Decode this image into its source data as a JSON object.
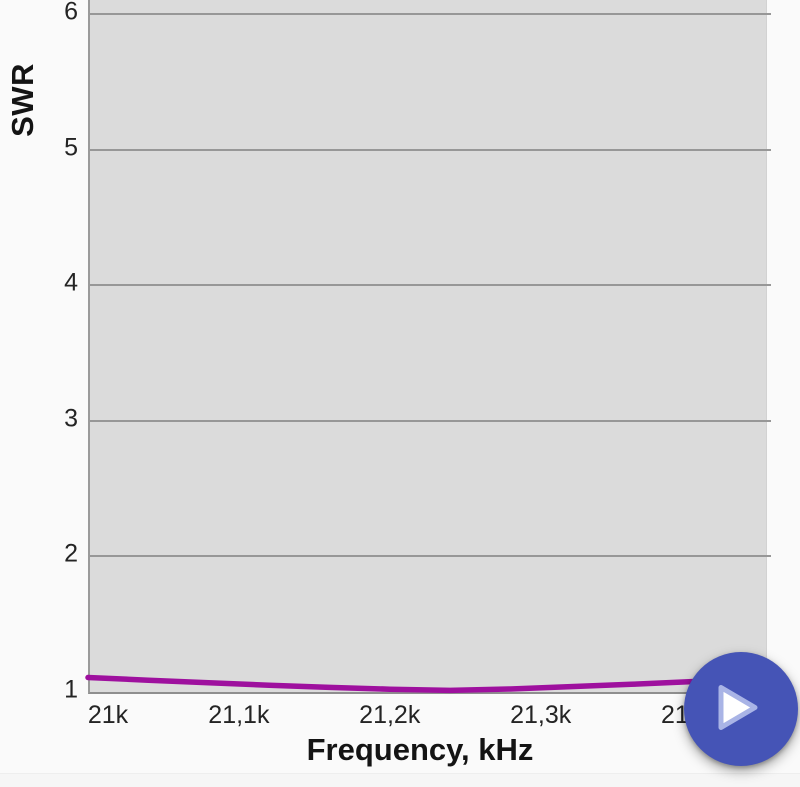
{
  "app": {
    "background_color": "#fafafa"
  },
  "fab": {
    "icon": "play-icon",
    "color": "#4554b6",
    "triangle_fill": "#ffffff",
    "triangle_stroke": "#a9b4e6"
  },
  "chart_data": {
    "type": "line",
    "title": "",
    "xlabel": "Frequency, kHz",
    "ylabel": "SWR",
    "xlim": [
      21000,
      21450
    ],
    "ylim": [
      1,
      6.1
    ],
    "grid": "horizontal-only",
    "plot_bg": "#dbdbdb",
    "grid_color": "#979797",
    "legend": "none",
    "x_ticks": [
      {
        "value": 21000,
        "label": "21k"
      },
      {
        "value": 21100,
        "label": "21,1k"
      },
      {
        "value": 21200,
        "label": "21,2k"
      },
      {
        "value": 21300,
        "label": "21,3k"
      },
      {
        "value": 21400,
        "label": "21,4k"
      }
    ],
    "y_ticks": [
      {
        "value": 1,
        "label": "1"
      },
      {
        "value": 2,
        "label": "2"
      },
      {
        "value": 3,
        "label": "3"
      },
      {
        "value": 4,
        "label": "4"
      },
      {
        "value": 5,
        "label": "5"
      },
      {
        "value": 6,
        "label": "6"
      }
    ],
    "series": [
      {
        "name": "SWR",
        "color": "#9e109e",
        "x": [
          21000,
          21040,
          21080,
          21120,
          21160,
          21200,
          21240,
          21280,
          21320,
          21360,
          21400,
          21450
        ],
        "y": [
          1.107,
          1.087,
          1.068,
          1.05,
          1.034,
          1.021,
          1.012,
          1.022,
          1.04,
          1.057,
          1.077,
          1.103
        ]
      }
    ]
  }
}
